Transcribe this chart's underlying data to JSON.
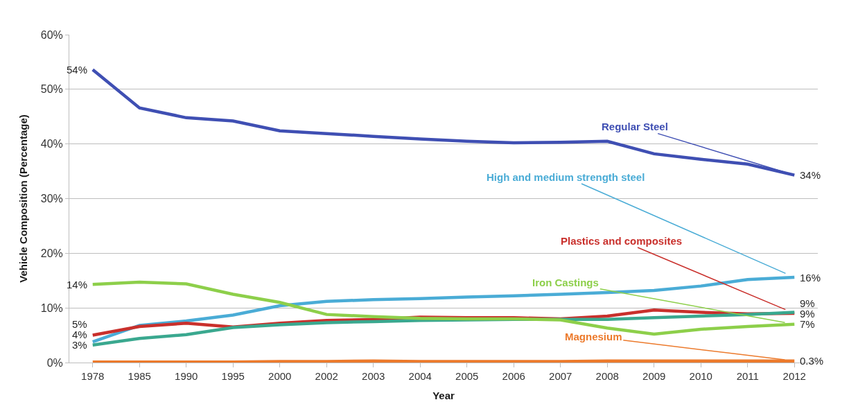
{
  "chart_data": {
    "type": "line",
    "xlabel": "Year",
    "ylabel": "Vehicle Composition (Percentage)",
    "categories": [
      "1978",
      "1985",
      "1990",
      "1995",
      "2000",
      "2002",
      "2003",
      "2004",
      "2005",
      "2006",
      "2007",
      "2008",
      "2009",
      "2010",
      "2011",
      "2012"
    ],
    "ylim": [
      0,
      60
    ],
    "yticks": [
      {
        "value": 0,
        "label": "0%"
      },
      {
        "value": 10,
        "label": "10%"
      },
      {
        "value": 20,
        "label": "20%"
      },
      {
        "value": 30,
        "label": "30%"
      },
      {
        "value": 40,
        "label": "40%"
      },
      {
        "value": 50,
        "label": "50%"
      },
      {
        "value": 60,
        "label": "60%"
      }
    ],
    "grid": "y",
    "marker": "none",
    "line_style": "solid",
    "series": [
      {
        "name": "Regular Steel",
        "color": "#3f4fb3",
        "values": [
          53.6,
          46.6,
          44.8,
          44.2,
          42.4,
          41.9,
          41.4,
          40.9,
          40.5,
          40.2,
          40.3,
          40.5,
          38.2,
          37.2,
          36.3,
          34.3
        ],
        "value_labels": [
          "54%",
          null,
          null,
          null,
          null,
          null,
          null,
          null,
          null,
          null,
          null,
          null,
          null,
          null,
          null,
          "34%"
        ]
      },
      {
        "name": "High and medium strength steel",
        "color": "#4aacd6",
        "values": [
          3.8,
          6.8,
          7.6,
          8.7,
          10.4,
          11.2,
          11.5,
          11.7,
          12.0,
          12.2,
          12.5,
          12.8,
          13.2,
          14.0,
          15.2,
          15.6
        ],
        "value_labels": [
          "4%",
          null,
          null,
          null,
          null,
          null,
          null,
          null,
          null,
          null,
          null,
          null,
          null,
          null,
          null,
          "16%"
        ]
      },
      {
        "name": "Plastics and composites",
        "color": "#c9302c",
        "values": [
          5.0,
          6.6,
          7.2,
          6.5,
          7.2,
          7.7,
          7.9,
          8.3,
          8.2,
          8.2,
          8.0,
          8.5,
          9.6,
          9.2,
          8.9,
          9.0
        ],
        "value_labels": [
          "5%",
          null,
          null,
          null,
          null,
          null,
          null,
          null,
          null,
          null,
          null,
          null,
          null,
          null,
          null,
          "9%"
        ]
      },
      {
        "color": "#3aa88f",
        "values": [
          3.2,
          4.4,
          5.1,
          6.4,
          6.9,
          7.3,
          7.5,
          7.7,
          7.8,
          7.9,
          7.9,
          7.9,
          8.2,
          8.5,
          8.8,
          9.2
        ],
        "value_labels": [
          "3%",
          null,
          null,
          null,
          null,
          null,
          null,
          null,
          null,
          null,
          null,
          null,
          null,
          null,
          null,
          "9%"
        ]
      },
      {
        "name": "Iron Castings",
        "color": "#8dcf4a",
        "values": [
          14.3,
          14.7,
          14.4,
          12.5,
          11.0,
          8.8,
          8.4,
          8.1,
          8.0,
          8.0,
          7.8,
          6.3,
          5.2,
          6.1,
          6.6,
          7.0
        ],
        "value_labels": [
          "14%",
          null,
          null,
          null,
          null,
          null,
          null,
          null,
          null,
          null,
          null,
          null,
          null,
          null,
          null,
          "7%"
        ]
      },
      {
        "name": "Magnesium",
        "color": "#ec7a2c",
        "values": [
          0.1,
          0.1,
          0.1,
          0.1,
          0.2,
          0.2,
          0.3,
          0.2,
          0.2,
          0.2,
          0.2,
          0.3,
          0.3,
          0.3,
          0.3,
          0.3
        ],
        "value_labels": [
          null,
          null,
          null,
          null,
          null,
          null,
          null,
          null,
          null,
          null,
          null,
          null,
          null,
          null,
          null,
          "0.3%"
        ]
      }
    ]
  }
}
